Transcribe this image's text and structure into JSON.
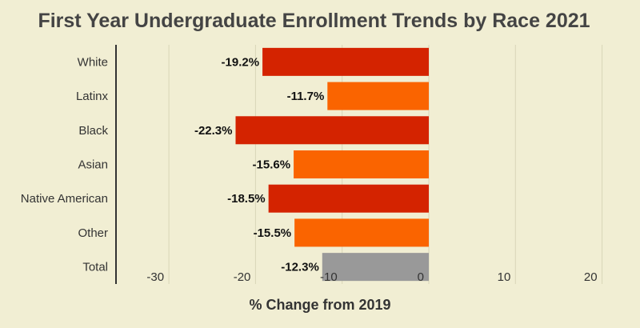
{
  "chart_data": {
    "type": "bar",
    "orientation": "horizontal",
    "title": "First Year Undergraduate Enrollment Trends by Race 2021",
    "xlabel": "% Change from 2019",
    "ylabel": "",
    "xlim": [
      -35,
      20
    ],
    "xticks": [
      -30,
      -20,
      -10,
      0,
      10,
      20
    ],
    "grid": true,
    "categories": [
      "White",
      "Latinx",
      "Black",
      "Asian",
      "Native American",
      "Other",
      "Total"
    ],
    "values": [
      -19.2,
      -11.7,
      -22.3,
      -15.6,
      -18.5,
      -15.5,
      -12.3
    ],
    "data_labels": [
      "-19.2%",
      "-11.7%",
      "-22.3%",
      "-15.6%",
      "-18.5%",
      "-15.5%",
      "-12.3%"
    ],
    "colors": [
      "#d42300",
      "#fa6400",
      "#d42300",
      "#fa6400",
      "#d42300",
      "#fa6400",
      "#999999"
    ]
  },
  "colors": {
    "background": "#f1eed3",
    "gridline": "#d9d6b8",
    "axis": "#333333"
  }
}
